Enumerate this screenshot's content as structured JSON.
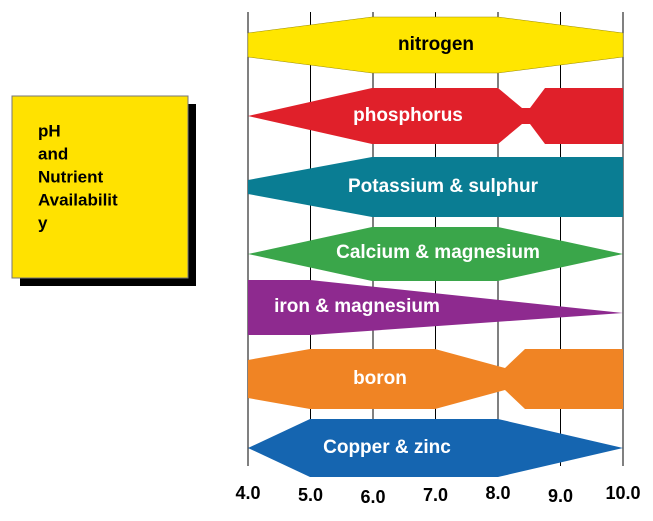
{
  "title_lines": [
    "pH",
    "and",
    "Nutrient",
    "Availabilit",
    "y"
  ],
  "bands": [
    {
      "label": "nitrogen"
    },
    {
      "label": "phosphorus"
    },
    {
      "label": "Potassium & sulphur"
    },
    {
      "label": "Calcium & magnesium"
    },
    {
      "label": "iron & magnesium"
    },
    {
      "label": "boron"
    },
    {
      "label": "Copper & zinc"
    }
  ],
  "axis": {
    "xlim": [
      4,
      10
    ],
    "xticks": [
      {
        "value": 4,
        "label": "4.0"
      },
      {
        "value": 5,
        "label": "5.0"
      },
      {
        "value": 6,
        "label": "6.0"
      },
      {
        "value": 7,
        "label": "7.0"
      },
      {
        "value": 8,
        "label": "8.0"
      },
      {
        "value": 9,
        "label": "9.0"
      },
      {
        "value": 10,
        "label": "10.0"
      }
    ]
  }
}
